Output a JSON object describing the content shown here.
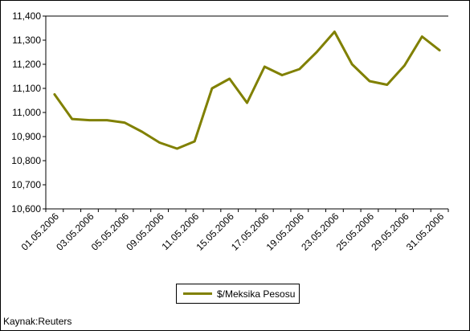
{
  "chart_data": {
    "type": "line",
    "title": "",
    "xlabel": "",
    "ylabel": "",
    "ylim": [
      10600,
      11400
    ],
    "yticks": [
      10600,
      10700,
      10800,
      10900,
      11000,
      11100,
      11200,
      11300,
      11400
    ],
    "ytick_labels": [
      "10,600",
      "10,700",
      "10,800",
      "10,900",
      "11,000",
      "11,100",
      "11,200",
      "11,300",
      "11,400"
    ],
    "x": [
      "01.05.2006",
      "02.05.2006",
      "03.05.2006",
      "04.05.2006",
      "05.05.2006",
      "08.05.2006",
      "09.05.2006",
      "10.05.2006",
      "11.05.2006",
      "12.05.2006",
      "15.05.2006",
      "16.05.2006",
      "17.05.2006",
      "18.05.2006",
      "19.05.2006",
      "22.05.2006",
      "23.05.2006",
      "24.05.2006",
      "25.05.2006",
      "26.05.2006",
      "29.05.2006",
      "30.05.2006",
      "31.05.2006"
    ],
    "xtick_labels": [
      "01.05.2006",
      "03.05.2006",
      "05.05.2006",
      "09.05.2006",
      "11.05.2006",
      "15.05.2006",
      "17.05.2006",
      "19.05.2006",
      "23.05.2006",
      "25.05.2006",
      "29.05.2006",
      "31.05.2006"
    ],
    "series": [
      {
        "name": "$/Meksika Pesosu",
        "color": "#808000",
        "values": [
          11075,
          10973,
          10968,
          10968,
          10958,
          10920,
          10875,
          10850,
          10880,
          11100,
          11140,
          11040,
          11190,
          11155,
          11180,
          11252,
          11335,
          11200,
          11130,
          11115,
          11195,
          11315,
          11258
        ]
      }
    ],
    "grid": "horizontal-top-only",
    "legend_position": "bottom-center",
    "source": "Kaynak:Reuters"
  }
}
